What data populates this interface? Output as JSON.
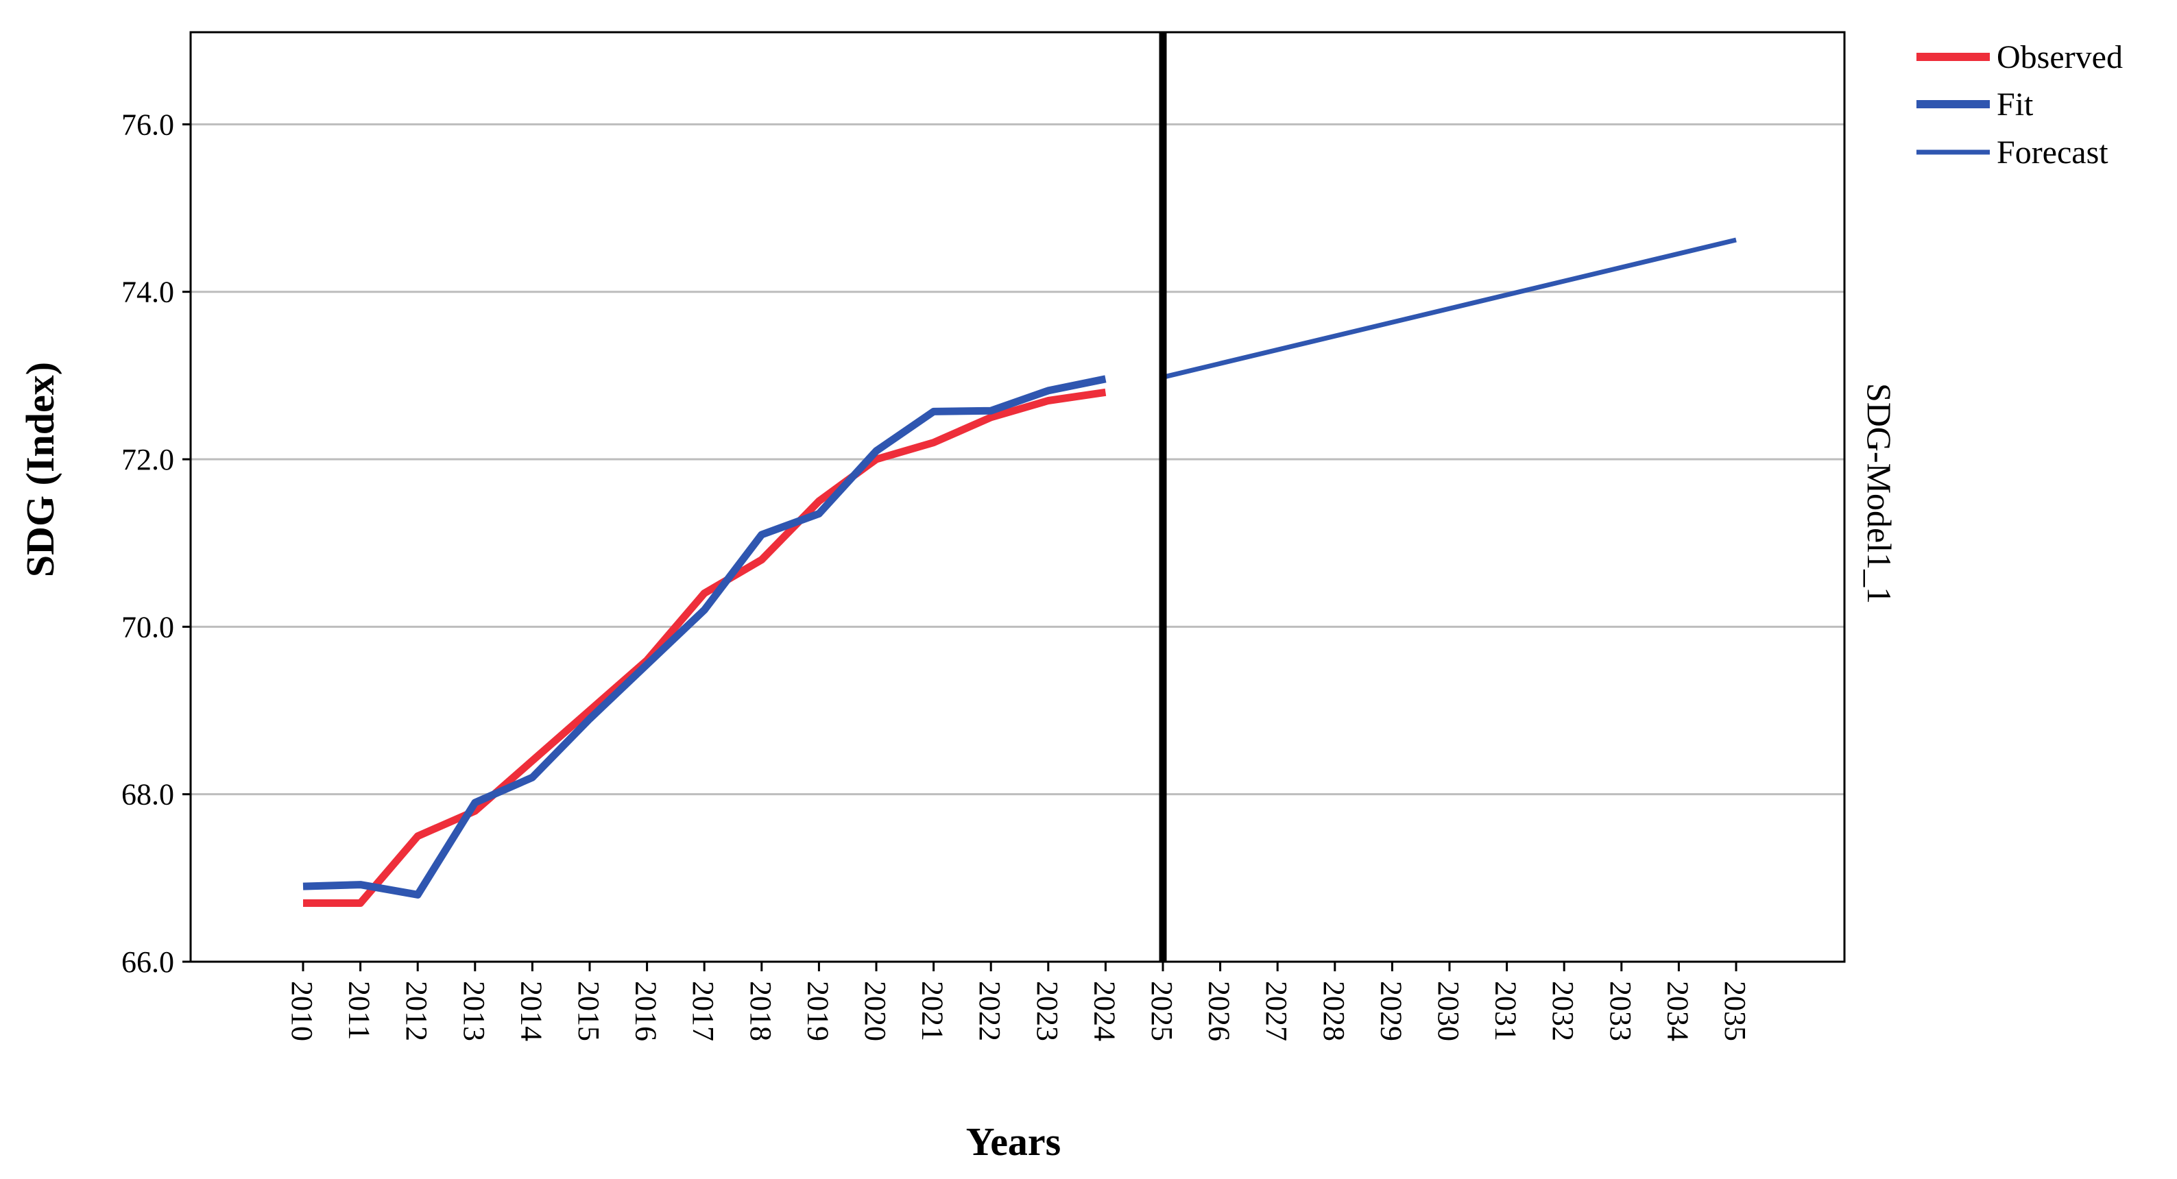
{
  "chart_data": {
    "type": "line",
    "xlabel": "Years",
    "ylabel": "SDG (Index)",
    "panel_label": "SDG-Model1_1",
    "ylim": [
      66.0,
      77.1
    ],
    "yticks": [
      "66.0",
      "68.0",
      "70.0",
      "72.0",
      "74.0",
      "76.0"
    ],
    "grid": true,
    "legend_position": "top-right",
    "categories": [
      "2010",
      "2011",
      "2012",
      "2013",
      "2014",
      "2015",
      "2016",
      "2017",
      "2018",
      "2019",
      "2020",
      "2021",
      "2022",
      "2023",
      "2024",
      "2025",
      "2026",
      "2027",
      "2028",
      "2029",
      "2030",
      "2031",
      "2032",
      "2033",
      "2034",
      "2035"
    ],
    "forecast_divider": "2025",
    "series": [
      {
        "name": "Observed",
        "color": "#ee2e3a",
        "line": "thick",
        "x": [
          "2010",
          "2011",
          "2012",
          "2013",
          "2014",
          "2015",
          "2016",
          "2017",
          "2018",
          "2019",
          "2020",
          "2021",
          "2022",
          "2023",
          "2024"
        ],
        "values": [
          66.7,
          66.7,
          67.5,
          67.8,
          68.4,
          69.0,
          69.6,
          70.4,
          70.8,
          71.5,
          72.0,
          72.2,
          72.5,
          72.7,
          72.8
        ]
      },
      {
        "name": "Fit",
        "color": "#2f56b0",
        "line": "thick",
        "x": [
          "2010",
          "2011",
          "2012",
          "2013",
          "2014",
          "2015",
          "2016",
          "2017",
          "2018",
          "2019",
          "2020",
          "2021",
          "2022",
          "2023",
          "2024"
        ],
        "values": [
          66.9,
          66.92,
          66.8,
          67.9,
          68.2,
          68.9,
          69.55,
          70.2,
          71.1,
          71.35,
          72.1,
          72.57,
          72.58,
          72.82,
          72.96
        ]
      },
      {
        "name": "Forecast",
        "color": "#2f56b0",
        "line": "thin",
        "x": [
          "2025",
          "2035"
        ],
        "values": [
          72.98,
          74.62
        ]
      }
    ]
  }
}
